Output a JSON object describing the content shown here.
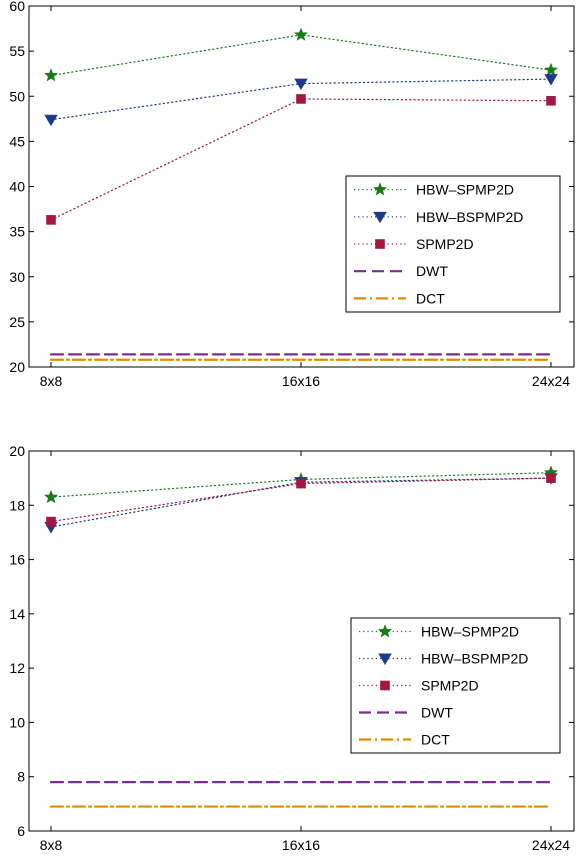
{
  "chart_data": [
    {
      "type": "line",
      "title": "",
      "xlabel": "",
      "ylabel": "",
      "categories": [
        "8x8",
        "16x16",
        "24x24"
      ],
      "ylim": [
        20,
        60
      ],
      "yticks": [
        20,
        25,
        30,
        35,
        40,
        45,
        50,
        55,
        60
      ],
      "grid": false,
      "legend_position": "center-right",
      "series": [
        {
          "name": "HBW–SPMP2D",
          "values": [
            52.3,
            56.8,
            52.9
          ],
          "color": "#1a7a1a",
          "line": "dotted",
          "marker": "star"
        },
        {
          "name": "HBW–BSPMP2D",
          "values": [
            47.4,
            51.4,
            51.9
          ],
          "color": "#1c3a8c",
          "line": "dotted",
          "marker": "triangle-down"
        },
        {
          "name": "SPMP2D",
          "values": [
            36.3,
            49.7,
            49.5
          ],
          "color": "#a31840",
          "line": "dotted",
          "marker": "square"
        },
        {
          "name": "DWT",
          "values": [
            21.4,
            21.4,
            21.4
          ],
          "color": "#7a2e8e",
          "line": "dashed",
          "marker": "none"
        },
        {
          "name": "DCT",
          "values": [
            20.8,
            20.8,
            20.8
          ],
          "color": "#e08a00",
          "line": "dashdot",
          "marker": "none"
        }
      ]
    },
    {
      "type": "line",
      "title": "",
      "xlabel": "",
      "ylabel": "",
      "categories": [
        "8x8",
        "16x16",
        "24x24"
      ],
      "ylim": [
        6,
        20
      ],
      "yticks": [
        6,
        8,
        10,
        12,
        14,
        16,
        18,
        20
      ],
      "grid": false,
      "legend_position": "center-right",
      "series": [
        {
          "name": "HBW–SPMP2D",
          "values": [
            18.3,
            18.95,
            19.2
          ],
          "color": "#1a7a1a",
          "line": "dotted",
          "marker": "star"
        },
        {
          "name": "HBW–BSPMP2D",
          "values": [
            17.2,
            18.85,
            19.0
          ],
          "color": "#1c3a8c",
          "line": "dotted",
          "marker": "triangle-down"
        },
        {
          "name": "SPMP2D",
          "values": [
            17.4,
            18.8,
            19.0
          ],
          "color": "#a31840",
          "line": "dotted",
          "marker": "square"
        },
        {
          "name": "DWT",
          "values": [
            7.8,
            7.8,
            7.8
          ],
          "color": "#7a2e8e",
          "line": "dashed",
          "marker": "none"
        },
        {
          "name": "DCT",
          "values": [
            6.9,
            6.9,
            6.9
          ],
          "color": "#e08a00",
          "line": "dashdot",
          "marker": "none"
        }
      ]
    }
  ]
}
